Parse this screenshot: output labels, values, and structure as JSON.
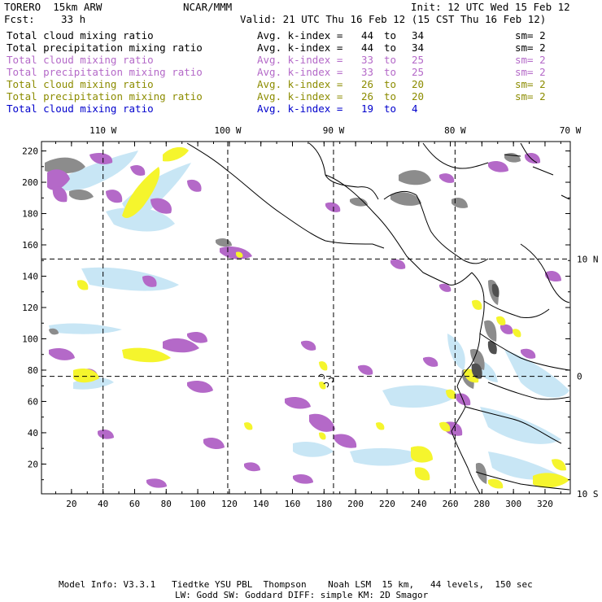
{
  "header": {
    "model": "TORERO  15km ARW",
    "org": "NCAR/MMM",
    "init": "Init: 12 UTC Wed 15 Feb 12",
    "fcst_label": "Fcst:",
    "fcst_value": "33 h",
    "valid": "Valid: 21 UTC Thu 16 Feb 12 (15 CST Thu 16 Feb 12)"
  },
  "legend": [
    {
      "field": "Total cloud mixing ratio",
      "index_label": "Avg. k-index =",
      "k_from": "44",
      "to": "to",
      "k_to": "34",
      "smooth": "sm= 2",
      "color": "#000000"
    },
    {
      "field": "Total precipitation mixing ratio",
      "index_label": "Avg. k-index =",
      "k_from": "44",
      "to": "to",
      "k_to": "34",
      "smooth": "sm= 2",
      "color": "#000000"
    },
    {
      "field": "Total cloud mixing ratio",
      "index_label": "Avg. k-index =",
      "k_from": "33",
      "to": "to",
      "k_to": "25",
      "smooth": "sm= 2",
      "color": "#b469c8"
    },
    {
      "field": "Total precipitation mixing ratio",
      "index_label": "Avg. k-index =",
      "k_from": "33",
      "to": "to",
      "k_to": "25",
      "smooth": "sm= 2",
      "color": "#b469c8"
    },
    {
      "field": "Total cloud mixing ratio",
      "index_label": "Avg. k-index =",
      "k_from": "26",
      "to": "to",
      "k_to": "20",
      "smooth": "sm= 2",
      "color": "#8c8c00"
    },
    {
      "field": "Total precipitation mixing ratio",
      "index_label": "Avg. k-index =",
      "k_from": "26",
      "to": "to",
      "k_to": "20",
      "smooth": "sm= 2",
      "color": "#8c8c00"
    },
    {
      "field": "Total cloud mixing ratio",
      "index_label": "Avg. k-index =",
      "k_from": "19",
      "to": "to",
      "k_to": "4",
      "smooth": "",
      "color": "#0000cc"
    }
  ],
  "map": {
    "x_ticks": [
      "20",
      "40",
      "60",
      "80",
      "100",
      "120",
      "140",
      "160",
      "180",
      "200",
      "220",
      "240",
      "260",
      "280",
      "300",
      "320"
    ],
    "y_ticks": [
      "20",
      "40",
      "60",
      "80",
      "100",
      "120",
      "140",
      "160",
      "180",
      "200",
      "220"
    ],
    "grid_x_range": [
      1,
      336
    ],
    "grid_y_range": [
      1,
      226
    ],
    "longitudes": [
      {
        "label": "110 W",
        "grid_x": 40
      },
      {
        "label": "100 W",
        "grid_x": 119
      },
      {
        "label": "90 W",
        "grid_x": 186
      },
      {
        "label": "80 W",
        "grid_x": 263
      },
      {
        "label": "70 W",
        "grid_x": 336
      }
    ],
    "latitudes": [
      {
        "label": "10 N",
        "grid_y": 151
      },
      {
        "label": "0",
        "grid_y": 76
      },
      {
        "label": "10 S",
        "grid_y": 1
      }
    ],
    "colors": {
      "gray": "#8c8c8c",
      "purple": "#b469c8",
      "yellow": "#f5f52d",
      "lightblue": "#c8e6f5"
    }
  },
  "footer": {
    "line1": "Model Info: V3.3.1   Tiedtke YSU PBL  Thompson    Noah LSM  15 km,   44 levels,  150 sec",
    "line2": "LW: Godd SW: Goddard DIFF: simple KM: 2D Smagor"
  }
}
